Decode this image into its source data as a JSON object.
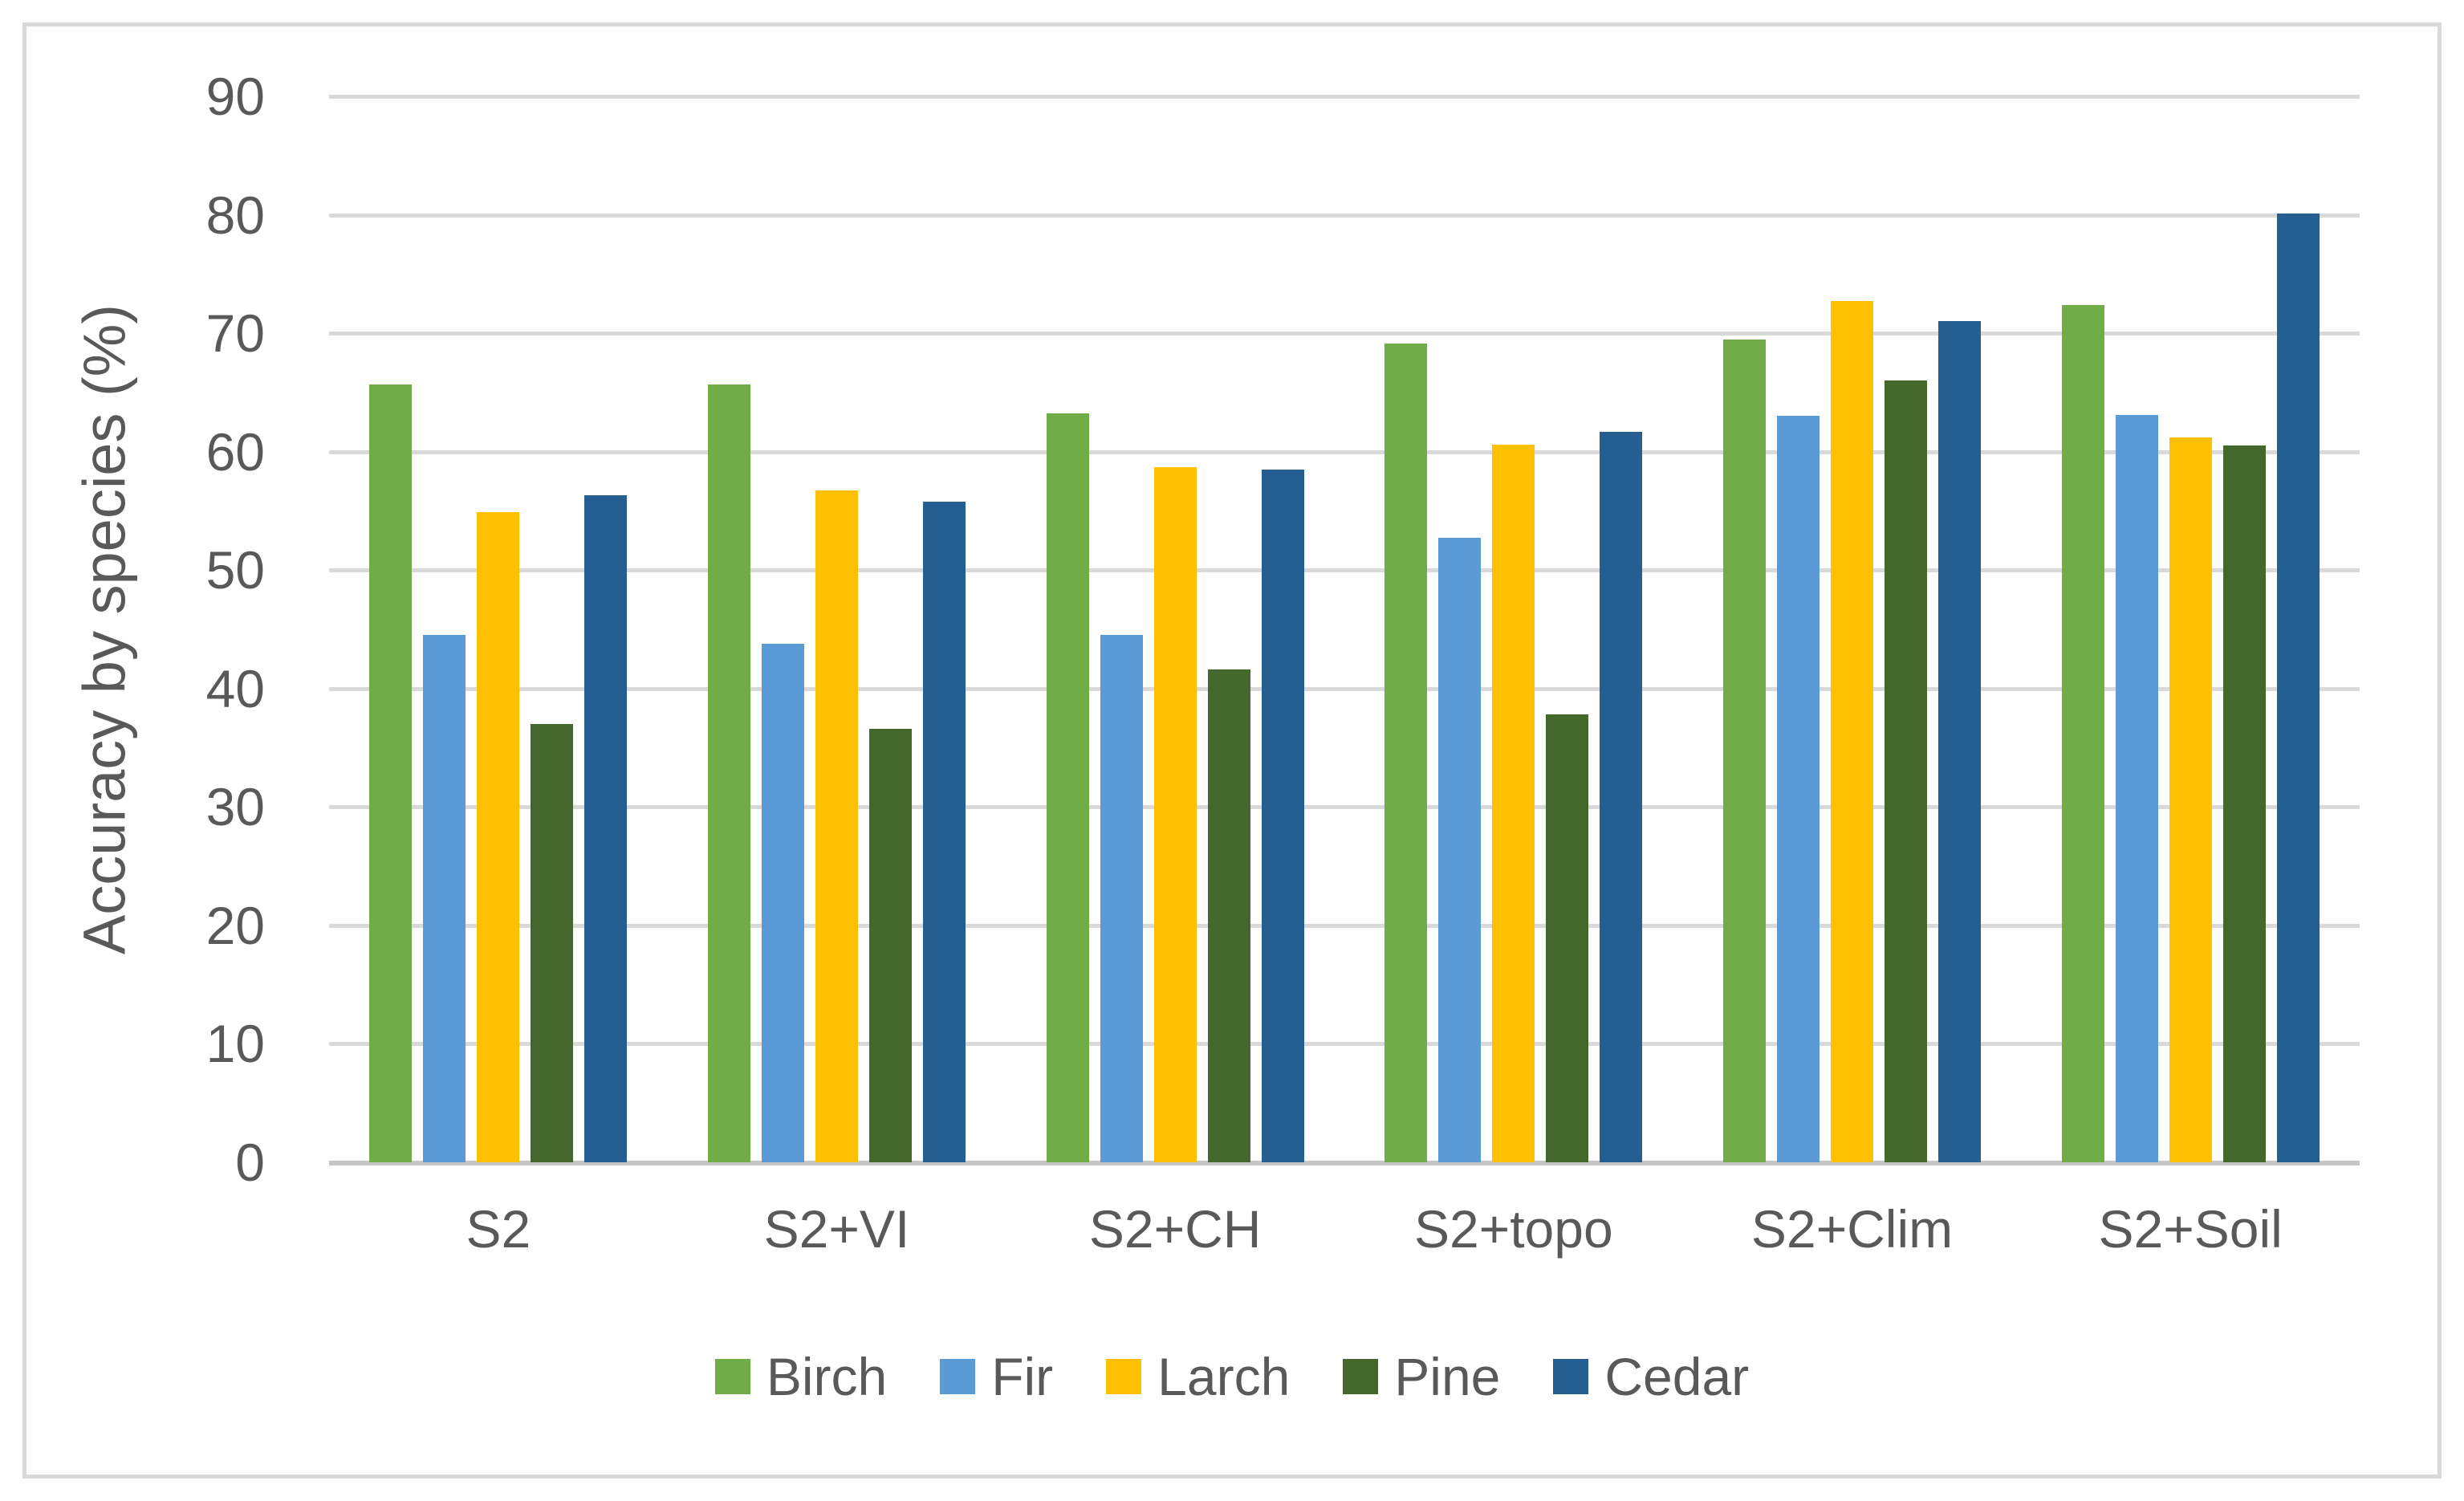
{
  "chart_data": {
    "type": "bar",
    "title": "",
    "xlabel": "",
    "ylabel": "Accuracy by species (%)",
    "ylim": [
      0,
      90
    ],
    "y_ticks": [
      0,
      10,
      20,
      30,
      40,
      50,
      60,
      70,
      80,
      90
    ],
    "grid": true,
    "legend_position": "bottom",
    "categories": [
      "S2",
      "S2+VI",
      "S2+CH",
      "S2+topo",
      "S2+Clim",
      "S2+Soil"
    ],
    "series": [
      {
        "name": "Birch",
        "color": "#70AD47",
        "values": [
          65.7,
          65.7,
          63.2,
          69.1,
          69.5,
          72.4
        ]
      },
      {
        "name": "Fir",
        "color": "#5B9BD5",
        "values": [
          44.5,
          43.8,
          44.5,
          52.7,
          63.0,
          63.1
        ]
      },
      {
        "name": "Larch",
        "color": "#FFC000",
        "values": [
          54.9,
          56.7,
          58.7,
          60.6,
          72.7,
          61.2
        ]
      },
      {
        "name": "Pine",
        "color": "#44682C",
        "values": [
          37.0,
          36.6,
          41.6,
          37.8,
          66.0,
          60.5
        ]
      },
      {
        "name": "Cedar",
        "color": "#255E91",
        "values": [
          56.3,
          55.8,
          58.5,
          61.7,
          71.0,
          80.1
        ]
      }
    ]
  },
  "colors": {
    "gridline": "#D9D9D9",
    "axis_line": "#C6C6C6",
    "text": "#595959",
    "frame_border": "#D9D9D9",
    "background": "#FFFFFF"
  }
}
